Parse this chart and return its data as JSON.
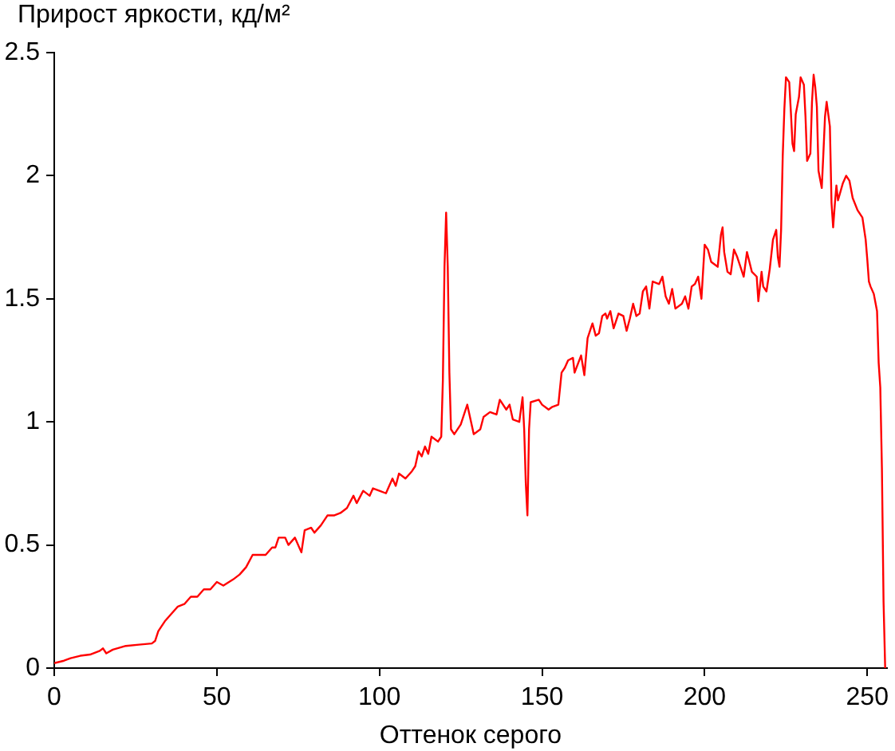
{
  "chart_data": {
    "type": "line",
    "ylabel": "Прирост яркости, кд/м²",
    "xlabel": "Оттенок серого",
    "color": "#ff0000",
    "xlim": [
      0,
      256
    ],
    "xticks": [
      0,
      50,
      100,
      150,
      200,
      250
    ],
    "ylim": [
      0,
      2.5
    ],
    "yticks": [
      0,
      0.5,
      1,
      1.5,
      2,
      2.5
    ],
    "grid": false,
    "x": [
      0,
      3,
      5,
      8,
      11,
      14,
      15,
      16,
      18,
      22,
      26,
      30,
      31,
      32,
      34,
      36,
      38,
      40,
      42,
      44,
      46,
      48,
      50,
      52,
      55,
      57,
      59,
      61,
      63,
      65,
      67,
      68,
      69,
      71,
      72,
      74,
      76,
      77,
      79,
      80,
      82,
      84,
      86,
      88,
      90,
      92,
      93,
      95,
      97,
      98,
      100,
      102,
      104,
      105,
      106,
      108,
      110,
      111,
      112,
      113,
      114,
      115,
      116,
      118,
      119,
      119.5,
      120,
      120.5,
      121,
      121.5,
      122,
      123,
      125,
      126,
      127,
      129,
      131,
      132,
      134,
      136,
      137,
      139,
      140,
      141,
      143,
      144,
      144.5,
      145,
      145.5,
      146,
      146.5,
      149,
      150,
      152,
      153,
      155,
      156,
      157,
      158,
      159.5,
      160,
      162,
      163,
      164,
      165.5,
      166.5,
      167.5,
      168.5,
      169.5,
      170,
      171,
      172,
      173.5,
      175,
      176,
      177,
      178,
      179,
      180,
      181,
      182,
      183,
      184,
      186,
      187,
      188,
      189,
      190,
      191,
      193,
      194,
      195,
      196,
      197,
      198,
      199,
      200,
      201,
      202,
      203,
      204,
      205,
      205.5,
      206,
      207,
      208,
      209,
      210,
      211,
      212,
      213,
      214.5,
      216,
      216.5,
      217.5,
      218,
      219,
      220,
      221,
      222,
      222.5,
      223,
      223.5,
      224,
      224.5,
      225,
      226,
      226.5,
      227,
      227.5,
      228,
      229,
      229.5,
      230.5,
      231,
      231.5,
      232.5,
      233,
      233.5,
      234,
      234.5,
      235,
      236,
      236.5,
      237,
      237.5,
      238.5,
      239,
      239.5,
      240,
      240.5,
      241,
      242.5,
      243.5,
      244.5,
      245.5,
      247,
      248.5,
      249.5,
      250,
      250.5,
      251,
      252,
      253,
      253.5,
      254,
      254.5,
      255,
      255.5
    ],
    "values": [
      0.02,
      0.03,
      0.04,
      0.05,
      0.055,
      0.07,
      0.08,
      0.06,
      0.075,
      0.09,
      0.095,
      0.1,
      0.11,
      0.15,
      0.19,
      0.22,
      0.25,
      0.26,
      0.29,
      0.29,
      0.32,
      0.32,
      0.35,
      0.335,
      0.36,
      0.38,
      0.41,
      0.46,
      0.46,
      0.46,
      0.49,
      0.49,
      0.53,
      0.53,
      0.5,
      0.53,
      0.47,
      0.56,
      0.57,
      0.55,
      0.58,
      0.62,
      0.62,
      0.63,
      0.65,
      0.7,
      0.67,
      0.72,
      0.7,
      0.73,
      0.72,
      0.71,
      0.77,
      0.74,
      0.79,
      0.77,
      0.8,
      0.82,
      0.88,
      0.86,
      0.9,
      0.87,
      0.94,
      0.92,
      0.94,
      1.17,
      1.63,
      1.85,
      1.63,
      1.2,
      0.97,
      0.95,
      0.99,
      1.03,
      1.07,
      0.95,
      0.97,
      1.02,
      1.04,
      1.03,
      1.09,
      1.05,
      1.07,
      1.01,
      1.0,
      1.1,
      0.97,
      0.75,
      0.62,
      0.97,
      1.08,
      1.09,
      1.07,
      1.05,
      1.06,
      1.07,
      1.2,
      1.22,
      1.25,
      1.26,
      1.2,
      1.27,
      1.19,
      1.34,
      1.4,
      1.35,
      1.36,
      1.43,
      1.44,
      1.42,
      1.45,
      1.38,
      1.44,
      1.43,
      1.37,
      1.42,
      1.48,
      1.43,
      1.44,
      1.53,
      1.55,
      1.46,
      1.57,
      1.56,
      1.59,
      1.51,
      1.48,
      1.54,
      1.46,
      1.48,
      1.51,
      1.46,
      1.55,
      1.56,
      1.59,
      1.5,
      1.72,
      1.7,
      1.65,
      1.64,
      1.63,
      1.76,
      1.79,
      1.69,
      1.61,
      1.6,
      1.7,
      1.67,
      1.63,
      1.59,
      1.69,
      1.61,
      1.59,
      1.49,
      1.61,
      1.55,
      1.53,
      1.62,
      1.74,
      1.78,
      1.67,
      1.63,
      1.78,
      2.08,
      2.27,
      2.4,
      2.38,
      2.26,
      2.13,
      2.1,
      2.25,
      2.32,
      2.4,
      2.37,
      2.24,
      2.06,
      2.09,
      2.3,
      2.41,
      2.36,
      2.28,
      2.02,
      1.95,
      2.09,
      2.24,
      2.3,
      2.2,
      1.89,
      1.79,
      1.88,
      1.96,
      1.9,
      1.97,
      2.0,
      1.98,
      1.91,
      1.86,
      1.83,
      1.74,
      1.66,
      1.57,
      1.55,
      1.52,
      1.45,
      1.24,
      1.14,
      0.81,
      0.27,
      0
    ]
  }
}
